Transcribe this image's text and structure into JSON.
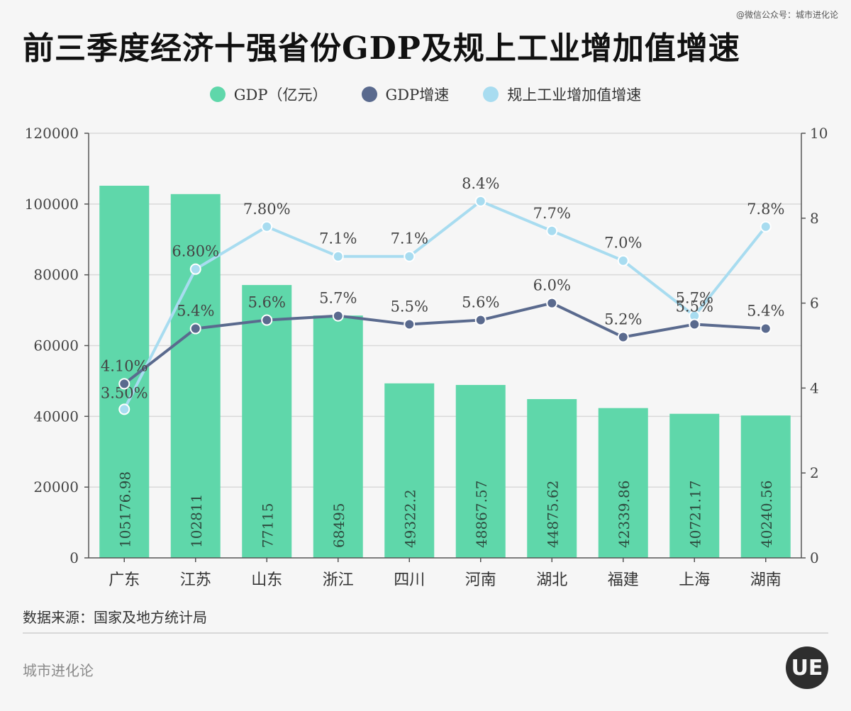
{
  "watermark": "@微信公众号：城市进化论",
  "footer": {
    "source": "数据来源：国家及地方统计局",
    "brand": "城市进化论",
    "logo_text": "UE"
  },
  "colors": {
    "gdp_bar": "#5fd7aa",
    "gdp_growth_line": "#5a6a8e",
    "industry_growth_line": "#a8dcf0",
    "axis": "#555555",
    "grid": "#d9d9d9"
  },
  "chart_data": {
    "type": "bar",
    "title": "前三季度经济十强省份GDP及规上工业增加值增速",
    "categories": [
      "广东",
      "江苏",
      "山东",
      "浙江",
      "四川",
      "河南",
      "湖北",
      "福建",
      "上海",
      "湖南"
    ],
    "series": [
      {
        "name": "GDP（亿元）",
        "type": "bar",
        "axis": "left",
        "values": [
          105176.98,
          102811,
          77115,
          68495,
          49322.2,
          48867.57,
          44875.62,
          42339.86,
          40721.17,
          40240.56
        ],
        "labels": [
          "105176.98",
          "102811",
          "77115",
          "68495",
          "49322.2",
          "48867.57",
          "44875.62",
          "42339.86",
          "40721.17",
          "40240.56"
        ]
      },
      {
        "name": "GDP增速",
        "type": "line",
        "axis": "right",
        "values": [
          4.1,
          5.4,
          5.6,
          5.7,
          5.5,
          5.6,
          6.0,
          5.2,
          5.5,
          5.4
        ],
        "labels": [
          "4.10%",
          "5.4%",
          "5.6%",
          "5.7%",
          "5.5%",
          "5.6%",
          "6.0%",
          "5.2%",
          "5.5%",
          "5.4%"
        ]
      },
      {
        "name": "规上工业增加值增速",
        "type": "line",
        "axis": "right",
        "values": [
          3.5,
          6.8,
          7.8,
          7.1,
          7.1,
          8.4,
          7.7,
          7.0,
          5.7,
          7.8
        ],
        "labels": [
          "3.50%",
          "6.80%",
          "7.80%",
          "7.1%",
          "7.1%",
          "8.4%",
          "7.7%",
          "7.0%",
          "5.7%",
          "7.8%"
        ]
      }
    ],
    "y_left": {
      "min": 0,
      "max": 120000,
      "ticks": [
        0,
        20000,
        40000,
        60000,
        80000,
        100000,
        120000
      ]
    },
    "y_right": {
      "min": 0,
      "max": 10,
      "ticks": [
        0,
        2,
        4,
        6,
        8,
        10
      ]
    },
    "grid": true,
    "legend_position": "top-center"
  }
}
